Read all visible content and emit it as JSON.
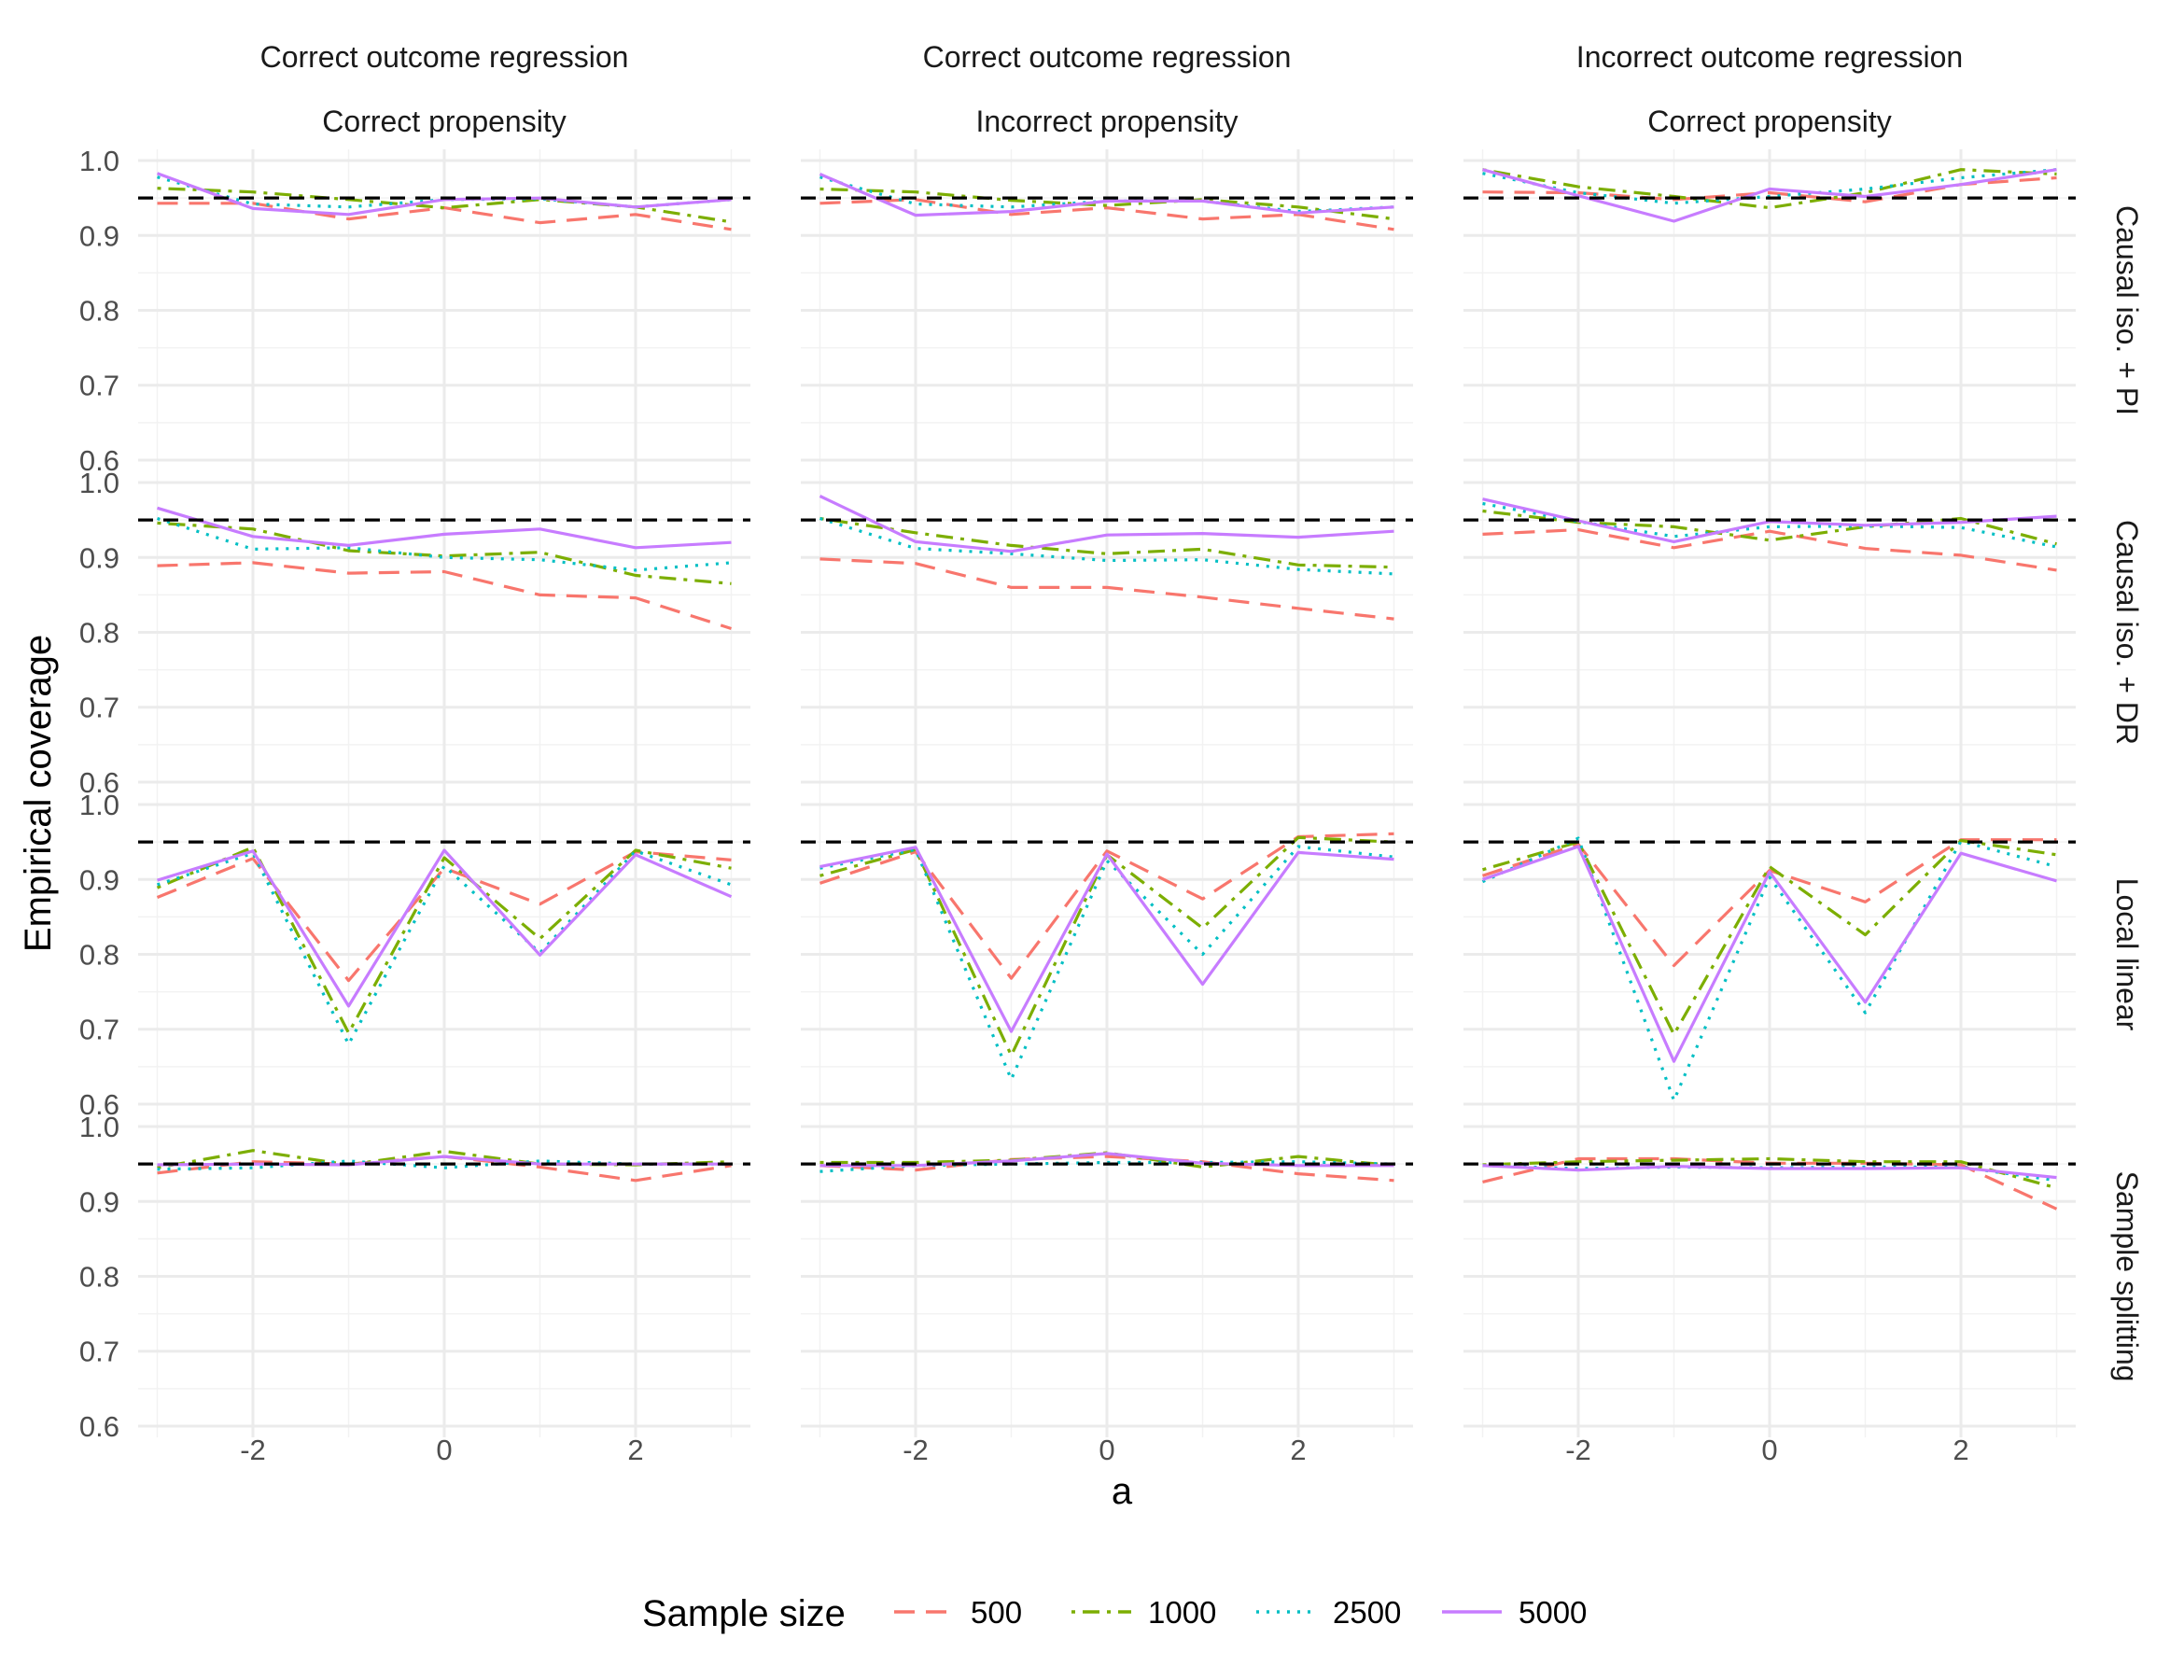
{
  "chart_data": {
    "type": "line",
    "title": "",
    "xlabel": "a",
    "ylabel": "Empirical coverage",
    "xlim": [
      -3.2,
      3.2
    ],
    "ylim": [
      0.585,
      1.015
    ],
    "x_ticks": [
      -2,
      0,
      2
    ],
    "x_tick_labels": [
      "-2",
      "0",
      "2"
    ],
    "y_ticks": [
      0.6,
      0.7,
      0.8,
      0.9,
      1.0
    ],
    "y_tick_labels": [
      "0.6",
      "0.7",
      "0.8",
      "0.9",
      "1.0"
    ],
    "reference_line": 0.95,
    "grid": true,
    "x": [
      -3,
      -2,
      -1,
      0,
      1,
      2,
      3
    ],
    "columns": [
      {
        "line1": "Correct outcome regression",
        "line2": "Correct propensity"
      },
      {
        "line1": "Correct outcome regression",
        "line2": "Incorrect propensity"
      },
      {
        "line1": "Incorrect outcome regression",
        "line2": "Correct propensity"
      }
    ],
    "rows": [
      "Causal iso. + PI",
      "Causal iso. + DR",
      "Local linear",
      "Sample splitting"
    ],
    "legend": {
      "title": "Sample size",
      "position": "bottom",
      "entries": [
        {
          "label": "500",
          "color": "#F8766D",
          "dash": "long-dash"
        },
        {
          "label": "1000",
          "color": "#7CAE00",
          "dash": "dot-dash"
        },
        {
          "label": "2500",
          "color": "#00BFC4",
          "dash": "dotted"
        },
        {
          "label": "5000",
          "color": "#C77CFF",
          "dash": "solid"
        }
      ]
    },
    "panels": [
      [
        {
          "series": [
            {
              "name": "500",
              "values": [
                0.943,
                0.943,
                0.922,
                0.937,
                0.917,
                0.928,
                0.908
              ]
            },
            {
              "name": "1000",
              "values": [
                0.963,
                0.958,
                0.948,
                0.937,
                0.948,
                0.938,
                0.918
              ]
            },
            {
              "name": "2500",
              "values": [
                0.978,
                0.942,
                0.938,
                0.948,
                0.949,
                0.938,
                0.948
              ]
            },
            {
              "name": "5000",
              "values": [
                0.983,
                0.936,
                0.928,
                0.948,
                0.95,
                0.938,
                0.948
              ]
            }
          ]
        },
        {
          "series": [
            {
              "name": "500",
              "values": [
                0.943,
                0.948,
                0.928,
                0.937,
                0.922,
                0.928,
                0.908
              ]
            },
            {
              "name": "1000",
              "values": [
                0.962,
                0.958,
                0.947,
                0.94,
                0.948,
                0.938,
                0.922
              ]
            },
            {
              "name": "2500",
              "values": [
                0.978,
                0.942,
                0.938,
                0.946,
                0.946,
                0.932,
                0.938
              ]
            },
            {
              "name": "5000",
              "values": [
                0.982,
                0.927,
                0.932,
                0.946,
                0.946,
                0.93,
                0.938
              ]
            }
          ]
        },
        {
          "series": [
            {
              "name": "500",
              "values": [
                0.958,
                0.957,
                0.948,
                0.957,
                0.945,
                0.968,
                0.977
              ]
            },
            {
              "name": "1000",
              "values": [
                0.988,
                0.965,
                0.952,
                0.937,
                0.957,
                0.988,
                0.982
              ]
            },
            {
              "name": "2500",
              "values": [
                0.983,
                0.957,
                0.943,
                0.952,
                0.962,
                0.977,
                0.988
              ]
            },
            {
              "name": "5000",
              "values": [
                0.988,
                0.953,
                0.919,
                0.962,
                0.952,
                0.968,
                0.988
              ]
            }
          ]
        }
      ],
      [
        {
          "series": [
            {
              "name": "500",
              "values": [
                0.889,
                0.893,
                0.879,
                0.881,
                0.85,
                0.846,
                0.805
              ]
            },
            {
              "name": "1000",
              "values": [
                0.946,
                0.938,
                0.909,
                0.902,
                0.907,
                0.876,
                0.865
              ]
            },
            {
              "name": "2500",
              "values": [
                0.952,
                0.911,
                0.913,
                0.9,
                0.897,
                0.883,
                0.893
              ]
            },
            {
              "name": "5000",
              "values": [
                0.966,
                0.928,
                0.916,
                0.931,
                0.938,
                0.913,
                0.92
              ]
            }
          ]
        },
        {
          "series": [
            {
              "name": "500",
              "values": [
                0.898,
                0.892,
                0.86,
                0.86,
                0.847,
                0.832,
                0.818
              ]
            },
            {
              "name": "1000",
              "values": [
                0.952,
                0.933,
                0.916,
                0.905,
                0.911,
                0.89,
                0.887
              ]
            },
            {
              "name": "2500",
              "values": [
                0.952,
                0.912,
                0.905,
                0.896,
                0.897,
                0.884,
                0.878
              ]
            },
            {
              "name": "5000",
              "values": [
                0.982,
                0.921,
                0.908,
                0.93,
                0.932,
                0.927,
                0.935
              ]
            }
          ]
        },
        {
          "series": [
            {
              "name": "500",
              "values": [
                0.931,
                0.937,
                0.913,
                0.935,
                0.912,
                0.903,
                0.883
              ]
            },
            {
              "name": "1000",
              "values": [
                0.962,
                0.947,
                0.941,
                0.923,
                0.941,
                0.952,
                0.918
              ]
            },
            {
              "name": "2500",
              "values": [
                0.972,
                0.948,
                0.928,
                0.941,
                0.942,
                0.94,
                0.914
              ]
            },
            {
              "name": "5000",
              "values": [
                0.978,
                0.949,
                0.921,
                0.948,
                0.943,
                0.947,
                0.955
              ]
            }
          ]
        }
      ],
      [
        {
          "series": [
            {
              "name": "500",
              "values": [
                0.876,
                0.928,
                0.765,
                0.915,
                0.867,
                0.937,
                0.926
              ]
            },
            {
              "name": "1000",
              "values": [
                0.889,
                0.943,
                0.695,
                0.929,
                0.821,
                0.939,
                0.915
              ]
            },
            {
              "name": "2500",
              "values": [
                0.893,
                0.935,
                0.68,
                0.918,
                0.802,
                0.938,
                0.893
              ]
            },
            {
              "name": "5000",
              "values": [
                0.899,
                0.938,
                0.731,
                0.939,
                0.799,
                0.933,
                0.877
              ]
            }
          ]
        },
        {
          "series": [
            {
              "name": "500",
              "values": [
                0.895,
                0.937,
                0.768,
                0.938,
                0.874,
                0.957,
                0.961
              ]
            },
            {
              "name": "1000",
              "values": [
                0.905,
                0.94,
                0.665,
                0.933,
                0.835,
                0.956,
                0.95
              ]
            },
            {
              "name": "2500",
              "values": [
                0.915,
                0.94,
                0.633,
                0.925,
                0.8,
                0.944,
                0.93
              ]
            },
            {
              "name": "5000",
              "values": [
                0.917,
                0.943,
                0.697,
                0.934,
                0.76,
                0.936,
                0.927
              ]
            }
          ]
        },
        {
          "series": [
            {
              "name": "500",
              "values": [
                0.905,
                0.947,
                0.785,
                0.912,
                0.87,
                0.953,
                0.953
              ]
            },
            {
              "name": "1000",
              "values": [
                0.913,
                0.95,
                0.693,
                0.917,
                0.826,
                0.952,
                0.933
              ]
            },
            {
              "name": "2500",
              "values": [
                0.897,
                0.955,
                0.605,
                0.903,
                0.722,
                0.951,
                0.917
              ]
            },
            {
              "name": "5000",
              "values": [
                0.9,
                0.944,
                0.657,
                0.91,
                0.736,
                0.935,
                0.898
              ]
            }
          ]
        }
      ],
      [
        {
          "series": [
            {
              "name": "500",
              "values": [
                0.938,
                0.953,
                0.95,
                0.96,
                0.946,
                0.928,
                0.948
              ]
            },
            {
              "name": "1000",
              "values": [
                0.945,
                0.968,
                0.949,
                0.967,
                0.95,
                0.949,
                0.953
              ]
            },
            {
              "name": "2500",
              "values": [
                0.943,
                0.945,
                0.954,
                0.945,
                0.954,
                0.95,
                0.95
              ]
            },
            {
              "name": "5000",
              "values": [
                0.949,
                0.95,
                0.949,
                0.96,
                0.95,
                0.95,
                0.95
              ]
            }
          ]
        },
        {
          "series": [
            {
              "name": "500",
              "values": [
                0.948,
                0.942,
                0.956,
                0.96,
                0.953,
                0.937,
                0.928
              ]
            },
            {
              "name": "1000",
              "values": [
                0.952,
                0.952,
                0.955,
                0.965,
                0.946,
                0.96,
                0.948
              ]
            },
            {
              "name": "2500",
              "values": [
                0.94,
                0.948,
                0.95,
                0.952,
                0.952,
                0.953,
                0.95
              ]
            },
            {
              "name": "5000",
              "values": [
                0.948,
                0.948,
                0.954,
                0.964,
                0.951,
                0.948,
                0.948
              ]
            }
          ]
        },
        {
          "series": [
            {
              "name": "500",
              "values": [
                0.926,
                0.957,
                0.957,
                0.951,
                0.951,
                0.949,
                0.89
              ]
            },
            {
              "name": "1000",
              "values": [
                0.949,
                0.953,
                0.955,
                0.957,
                0.953,
                0.953,
                0.918
              ]
            },
            {
              "name": "2500",
              "values": [
                0.948,
                0.944,
                0.946,
                0.945,
                0.946,
                0.946,
                0.928
              ]
            },
            {
              "name": "5000",
              "values": [
                0.948,
                0.942,
                0.947,
                0.944,
                0.944,
                0.945,
                0.932
              ]
            }
          ]
        }
      ]
    ]
  }
}
